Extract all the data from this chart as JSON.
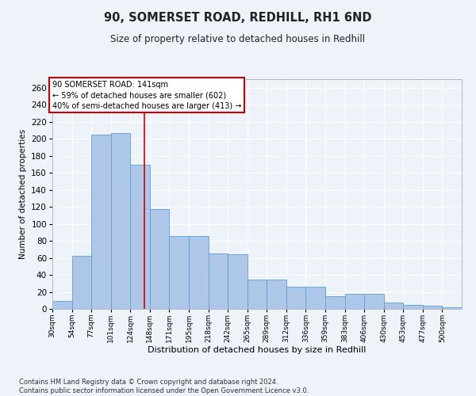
{
  "title": "90, SOMERSET ROAD, REDHILL, RH1 6ND",
  "subtitle": "Size of property relative to detached houses in Redhill",
  "xlabel": "Distribution of detached houses by size in Redhill",
  "ylabel": "Number of detached properties",
  "footnote": "Contains HM Land Registry data © Crown copyright and database right 2024.\nContains public sector information licensed under the Open Government Licence v3.0.",
  "bin_labels": [
    "30sqm",
    "54sqm",
    "77sqm",
    "101sqm",
    "124sqm",
    "148sqm",
    "171sqm",
    "195sqm",
    "218sqm",
    "242sqm",
    "265sqm",
    "289sqm",
    "312sqm",
    "336sqm",
    "359sqm",
    "383sqm",
    "406sqm",
    "430sqm",
    "453sqm",
    "477sqm",
    "500sqm"
  ],
  "bar_values": [
    9,
    62,
    205,
    207,
    169,
    117,
    86,
    86,
    65,
    64,
    34,
    34,
    26,
    26,
    15,
    18,
    18,
    7,
    5,
    4,
    2
  ],
  "bar_color": "#aec6e8",
  "bar_edge_color": "#5a9fd4",
  "property_label": "90 SOMERSET ROAD: 141sqm",
  "annotation_line1": "← 59% of detached houses are smaller (602)",
  "annotation_line2": "40% of semi-detached houses are larger (413) →",
  "vline_color": "#cc0000",
  "annotation_box_color": "#cc0000",
  "ylim": [
    0,
    270
  ],
  "yticks": [
    0,
    20,
    40,
    60,
    80,
    100,
    120,
    140,
    160,
    180,
    200,
    220,
    240,
    260
  ],
  "background_color": "#eef2f9",
  "grid_color": "#ffffff",
  "vline_bin_index": 4.72
}
